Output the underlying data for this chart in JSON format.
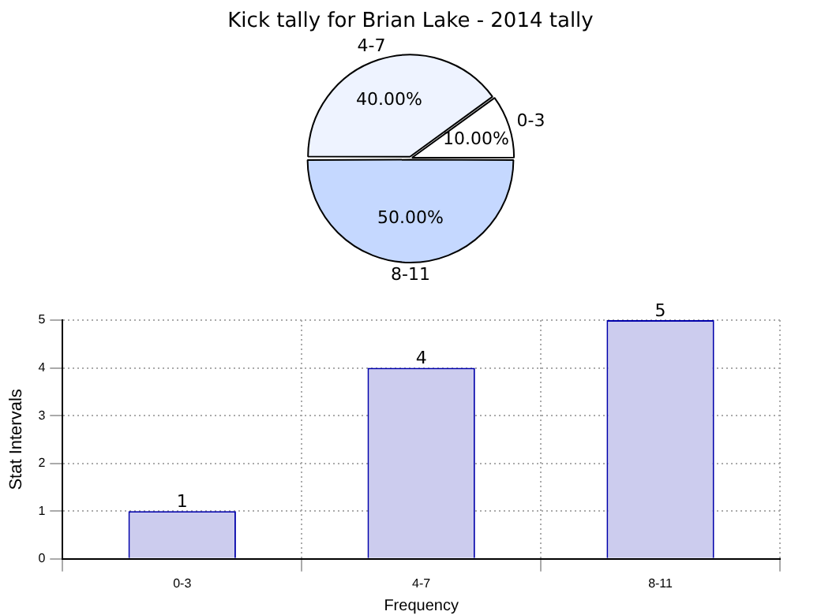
{
  "chart_data": [
    {
      "type": "pie",
      "title": "Kick tally for Brian Lake - 2014 tally",
      "categories": [
        "4-7",
        "0-3",
        "8-11"
      ],
      "values": [
        40,
        10,
        50
      ],
      "colors": [
        "#eef3ff",
        "#ffffff",
        "#c5d8ff"
      ],
      "value_labels": [
        "40.00%",
        "10.00%",
        "50.00%"
      ]
    },
    {
      "type": "bar",
      "categories": [
        "0-3",
        "4-7",
        "8-11"
      ],
      "values": [
        1,
        4,
        5
      ],
      "color": "#ccccee",
      "xlabel": "Frequency",
      "ylabel": "Stat Intervals",
      "ylim": [
        0,
        5
      ],
      "yticks": [
        0,
        1,
        2,
        3,
        4,
        5
      ],
      "grid": true,
      "data_labels": true
    }
  ]
}
